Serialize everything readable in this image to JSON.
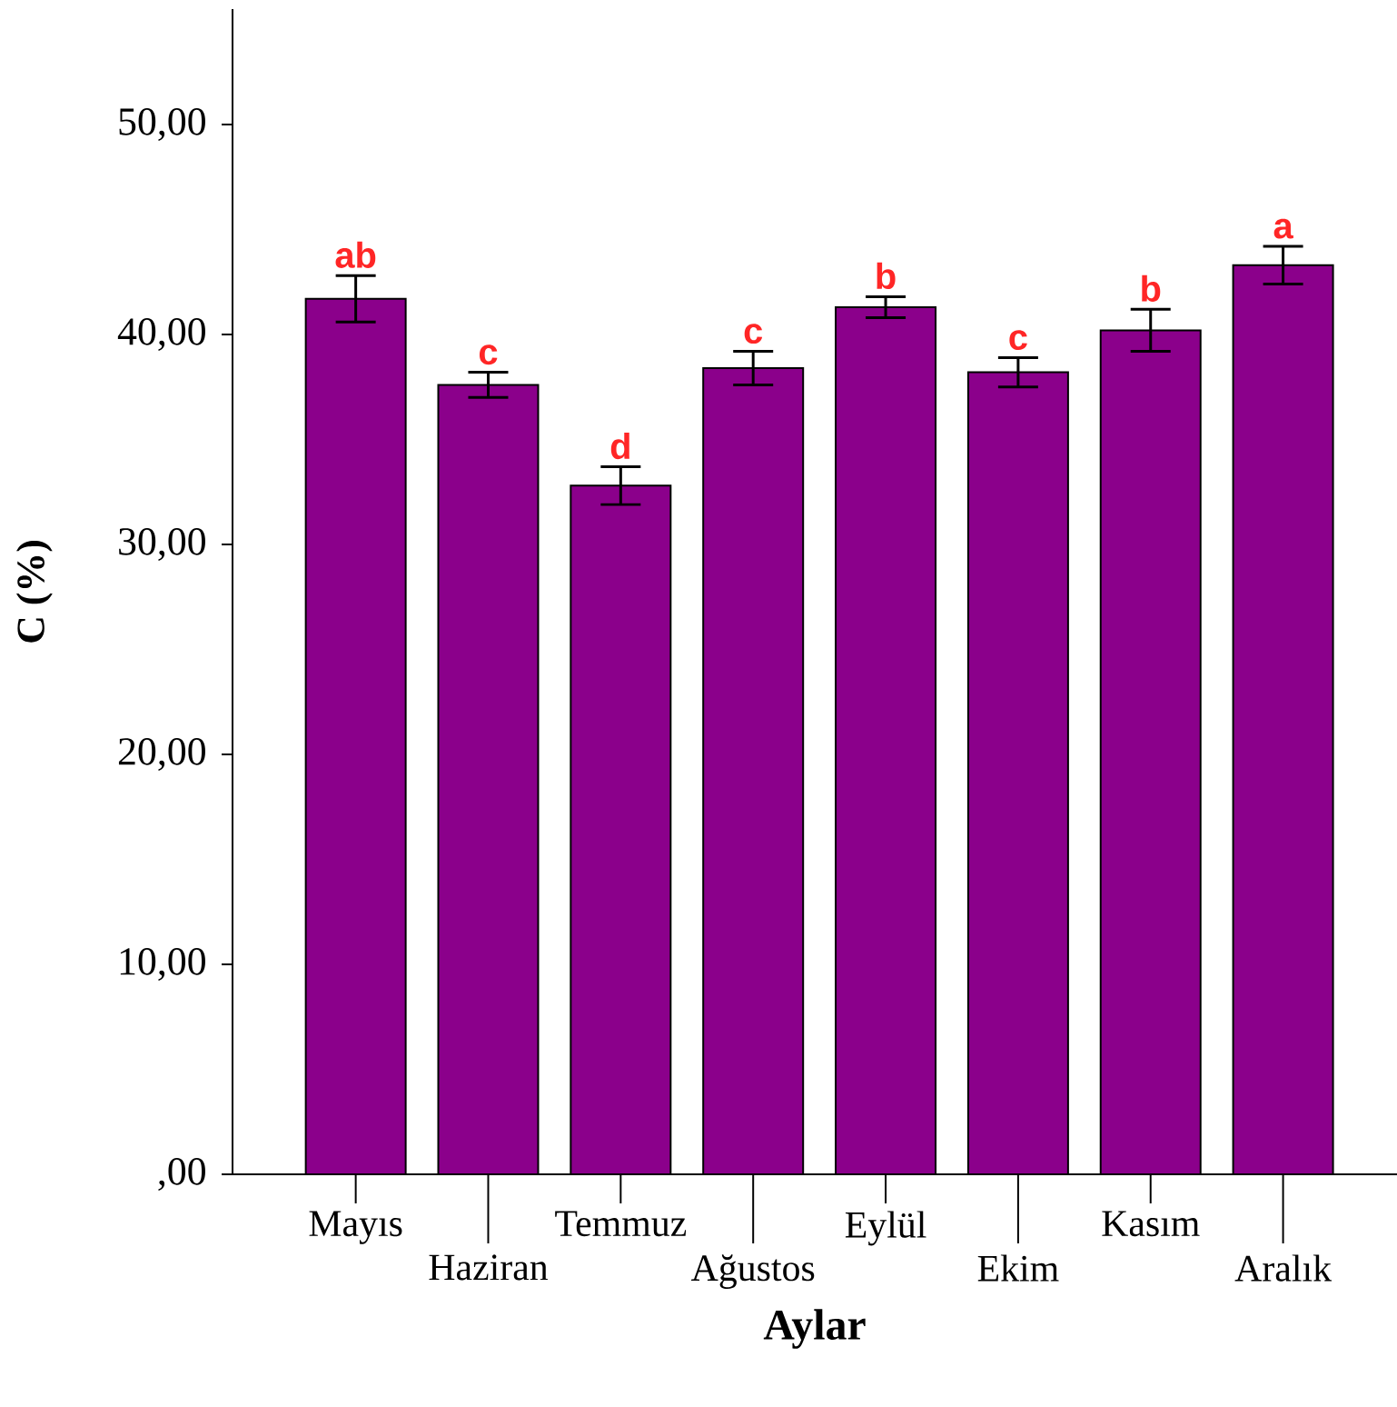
{
  "chart_data": {
    "type": "bar",
    "xlabel": "Aylar",
    "ylabel": "C (%)",
    "categories": [
      "Mayıs",
      "Haziran",
      "Temmuz",
      "Ağustos",
      "Eylül",
      "Ekim",
      "Kasım",
      "Aralık"
    ],
    "values": [
      41.7,
      37.6,
      32.8,
      38.4,
      41.3,
      38.2,
      40.2,
      43.3
    ],
    "errors": [
      1.1,
      0.6,
      0.9,
      0.8,
      0.5,
      0.7,
      1.0,
      0.9
    ],
    "color": "#8b008b",
    "ylim": [
      0,
      55.5
    ],
    "yticks": [
      {
        "value": 0,
        "label": ",00"
      },
      {
        "value": 10,
        "label": "10,00"
      },
      {
        "value": 20,
        "label": "20,00"
      },
      {
        "value": 30,
        "label": "30,00"
      },
      {
        "value": 40,
        "label": "40,00"
      },
      {
        "value": 50,
        "label": "50,00"
      }
    ],
    "annotations": [
      "ab",
      "c",
      "d",
      "c",
      "b",
      "c",
      "b",
      "a"
    ],
    "grid": false
  }
}
